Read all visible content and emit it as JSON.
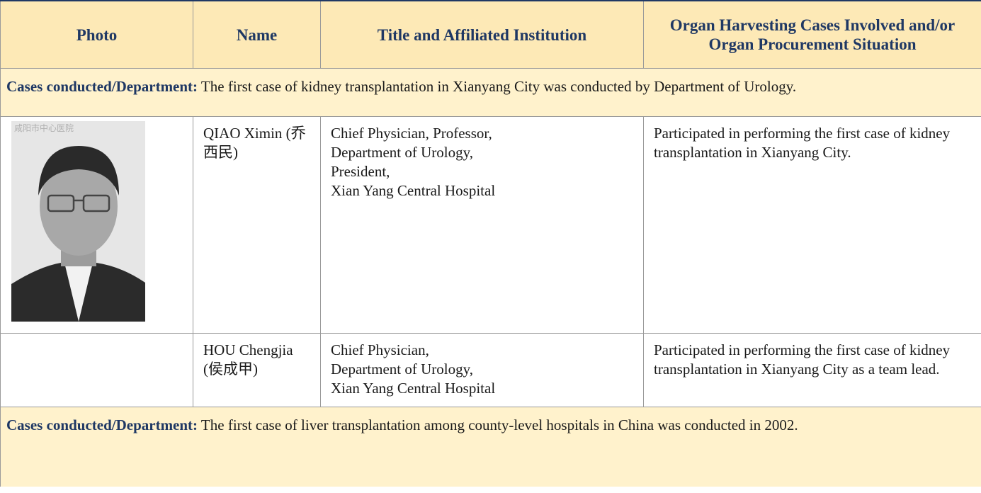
{
  "table": {
    "headers": [
      "Photo",
      "Name",
      "Title and Affiliated Institution",
      "Organ Harvesting Cases Involved and/or Organ Procurement Situation"
    ],
    "sections": [
      {
        "label": "Cases conducted/Department:",
        "text": "The first case of kidney transplantation in Xianyang City was conducted by Department of Urology.",
        "rows": [
          {
            "photo_watermark": "咸阳市中心医院",
            "name": "QIAO Ximin (乔西民)",
            "title_lines": [
              "Chief Physician, Professor,",
              "Department of Urology,",
              "President,",
              "Xian Yang Central Hospital"
            ],
            "cases": "Participated in performing the first case of kidney transplantation in Xianyang City."
          },
          {
            "name": "HOU Chengjia (侯成甲)",
            "title_lines": [
              "Chief Physician,",
              "Department of Urology,",
              "Xian Yang Central Hospital"
            ],
            "cases": "Participated in performing the first case of kidney transplantation in Xianyang City as a team lead."
          }
        ]
      },
      {
        "label": "Cases conducted/Department:",
        "text": "The first case of liver transplantation among county-level hospitals in China was conducted in 2002.",
        "rows": []
      }
    ]
  }
}
